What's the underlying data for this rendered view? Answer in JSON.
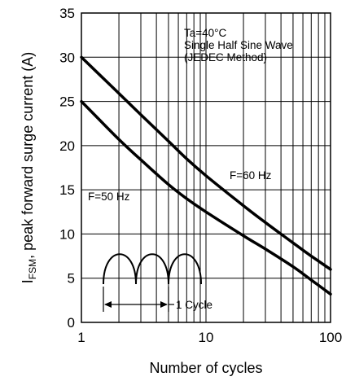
{
  "chart_data": {
    "type": "line",
    "xscale": "log",
    "xlim": [
      1,
      100
    ],
    "ylim": [
      0,
      35
    ],
    "xticks": [
      "1",
      "10",
      "100"
    ],
    "yticks": [
      "0",
      "5",
      "10",
      "15",
      "20",
      "25",
      "30",
      "35"
    ],
    "xlabel": "Number of cycles",
    "ylabel_main": "I",
    "ylabel_sub": "FSM",
    "ylabel_rest": ", peak forward surge current (A)",
    "grid": true,
    "conditions": [
      "Ta=40°C",
      "Single Half Sine Wave",
      "(JEDEC Method)"
    ],
    "inset_label": "1 Cycle",
    "series": [
      {
        "name": "F=60 Hz",
        "x": [
          1,
          2,
          3,
          5,
          7,
          10,
          20,
          30,
          50,
          70,
          100
        ],
        "y": [
          30,
          25.9,
          23.5,
          20.5,
          18.5,
          16.6,
          13.2,
          11.3,
          9.0,
          7.5,
          6.0
        ]
      },
      {
        "name": "F=50 Hz",
        "x": [
          1,
          2,
          3,
          5,
          7,
          10,
          20,
          30,
          50,
          70,
          100
        ],
        "y": [
          25,
          20.7,
          18.4,
          15.6,
          14.0,
          12.5,
          9.8,
          8.3,
          6.3,
          4.8,
          3.2
        ]
      }
    ]
  }
}
